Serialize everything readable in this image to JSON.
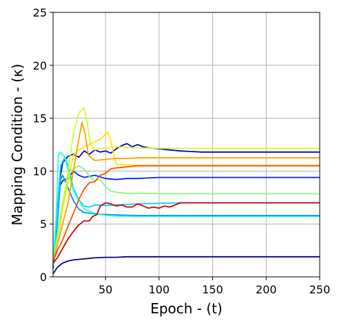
{
  "chart_data": {
    "type": "line",
    "xlabel": "Epoch - (t)",
    "ylabel": "Mapping Condition - (κ)",
    "xlim": [
      1,
      250
    ],
    "ylim": [
      0,
      25
    ],
    "x_ticks": [
      50,
      100,
      150,
      200,
      250
    ],
    "y_ticks": [
      0,
      5,
      10,
      15,
      20,
      25
    ],
    "grid": true,
    "legend": "none",
    "series": [
      {
        "color": "#00008f",
        "values": [
          [
            1,
            0.3
          ],
          [
            5,
            0.9
          ],
          [
            10,
            1.3
          ],
          [
            15,
            1.5
          ],
          [
            20,
            1.6
          ],
          [
            30,
            1.7
          ],
          [
            40,
            1.8
          ],
          [
            50,
            1.85
          ],
          [
            60,
            1.85
          ],
          [
            70,
            1.9
          ],
          [
            80,
            1.9
          ],
          [
            100,
            1.9
          ],
          [
            150,
            1.9
          ],
          [
            250,
            1.9
          ]
        ]
      },
      {
        "color": "#0000cd",
        "values": [
          [
            1,
            0.8
          ],
          [
            4,
            4.5
          ],
          [
            7,
            9
          ],
          [
            10,
            10.8
          ],
          [
            15,
            11.4
          ],
          [
            20,
            11.6
          ],
          [
            25,
            11.3
          ],
          [
            30,
            11.9
          ],
          [
            35,
            11.6
          ],
          [
            40,
            12.0
          ],
          [
            45,
            11.8
          ],
          [
            50,
            11.9
          ],
          [
            55,
            11.7
          ],
          [
            60,
            12.1
          ],
          [
            65,
            12.4
          ],
          [
            70,
            12.6
          ],
          [
            75,
            12.3
          ],
          [
            80,
            12.5
          ],
          [
            85,
            12.3
          ],
          [
            90,
            12.2
          ],
          [
            100,
            12.1
          ],
          [
            110,
            12.0
          ],
          [
            120,
            11.9
          ],
          [
            130,
            11.85
          ],
          [
            140,
            11.8
          ],
          [
            150,
            11.8
          ],
          [
            250,
            11.8
          ]
        ]
      },
      {
        "color": "#0022ff",
        "values": [
          [
            1,
            0.9
          ],
          [
            4,
            5
          ],
          [
            7,
            8.5
          ],
          [
            10,
            9.1
          ],
          [
            15,
            9.3
          ],
          [
            20,
            10.0
          ],
          [
            25,
            9.6
          ],
          [
            30,
            9.4
          ],
          [
            40,
            9.6
          ],
          [
            50,
            9.3
          ],
          [
            60,
            9.2
          ],
          [
            70,
            9.3
          ],
          [
            80,
            9.3
          ],
          [
            90,
            9.35
          ],
          [
            100,
            9.4
          ],
          [
            150,
            9.4
          ],
          [
            250,
            9.4
          ]
        ]
      },
      {
        "color": "#0090ff",
        "values": [
          [
            1,
            0.9
          ],
          [
            5,
            5
          ],
          [
            8,
            9.2
          ],
          [
            10,
            9.6
          ],
          [
            15,
            8.4
          ],
          [
            20,
            7.2
          ],
          [
            25,
            6.4
          ],
          [
            30,
            6.1
          ],
          [
            40,
            5.95
          ],
          [
            50,
            5.9
          ],
          [
            60,
            5.85
          ],
          [
            80,
            5.8
          ],
          [
            100,
            5.8
          ],
          [
            250,
            5.8
          ]
        ]
      },
      {
        "color": "#00d4ff",
        "values": [
          [
            1,
            1.0
          ],
          [
            5,
            6
          ],
          [
            8,
            10.5
          ],
          [
            12,
            11.3
          ],
          [
            15,
            10.5
          ],
          [
            20,
            8.4
          ],
          [
            25,
            7.3
          ],
          [
            30,
            6.7
          ],
          [
            35,
            6.6
          ],
          [
            40,
            6.8
          ],
          [
            50,
            6.75
          ],
          [
            60,
            6.8
          ],
          [
            70,
            6.85
          ],
          [
            80,
            6.9
          ],
          [
            100,
            6.95
          ],
          [
            120,
            7.0
          ],
          [
            150,
            7.0
          ],
          [
            250,
            7.0
          ]
        ]
      },
      {
        "color": "#29ffce",
        "values": [
          [
            1,
            1.0
          ],
          [
            4,
            6
          ],
          [
            6,
            11.5
          ],
          [
            8,
            11.8
          ],
          [
            12,
            11.3
          ],
          [
            16,
            9.6
          ],
          [
            20,
            8.2
          ],
          [
            25,
            7.2
          ],
          [
            30,
            6.4
          ],
          [
            40,
            6.0
          ],
          [
            50,
            5.8
          ],
          [
            60,
            5.75
          ],
          [
            80,
            5.7
          ],
          [
            100,
            5.7
          ],
          [
            250,
            5.7
          ]
        ]
      },
      {
        "color": "#7dff7a",
        "values": [
          [
            1,
            1.1
          ],
          [
            5,
            4
          ],
          [
            10,
            7
          ],
          [
            15,
            9.8
          ],
          [
            20,
            10.2
          ],
          [
            25,
            10.5
          ],
          [
            30,
            10.2
          ],
          [
            35,
            9.5
          ],
          [
            40,
            9.1
          ],
          [
            45,
            9.2
          ],
          [
            50,
            8.5
          ],
          [
            55,
            8.1
          ],
          [
            60,
            8.0
          ],
          [
            70,
            7.9
          ],
          [
            80,
            7.9
          ],
          [
            100,
            7.85
          ],
          [
            150,
            7.85
          ],
          [
            250,
            7.85
          ]
        ]
      },
      {
        "color": "#cdff29",
        "values": [
          [
            1,
            1.2
          ],
          [
            5,
            3
          ],
          [
            10,
            6.5
          ],
          [
            15,
            10
          ],
          [
            20,
            13.5
          ],
          [
            25,
            15.5
          ],
          [
            30,
            16.0
          ],
          [
            33,
            14.5
          ],
          [
            36,
            12.5
          ],
          [
            40,
            12.0
          ],
          [
            45,
            12.1
          ],
          [
            50,
            12.2
          ],
          [
            60,
            12.3
          ],
          [
            80,
            12.2
          ],
          [
            100,
            12.15
          ],
          [
            150,
            12.15
          ],
          [
            250,
            12.15
          ]
        ]
      },
      {
        "color": "#ffe600",
        "values": [
          [
            1,
            1.2
          ],
          [
            5,
            3
          ],
          [
            10,
            6.5
          ],
          [
            15,
            9
          ],
          [
            20,
            11.5
          ],
          [
            25,
            12.0
          ],
          [
            30,
            12.3
          ],
          [
            35,
            12.5
          ],
          [
            40,
            12.8
          ],
          [
            45,
            13.0
          ],
          [
            50,
            13.5
          ],
          [
            52,
            13.7
          ],
          [
            55,
            12.8
          ],
          [
            58,
            11.4
          ],
          [
            60,
            10.6
          ],
          [
            65,
            10.6
          ],
          [
            80,
            10.55
          ],
          [
            100,
            10.55
          ],
          [
            250,
            10.55
          ]
        ]
      },
      {
        "color": "#ffa000",
        "values": [
          [
            1,
            1.3
          ],
          [
            5,
            3
          ],
          [
            10,
            5
          ],
          [
            15,
            7
          ],
          [
            20,
            10
          ],
          [
            25,
            13
          ],
          [
            28,
            14.6
          ],
          [
            31,
            13.5
          ],
          [
            34,
            11.5
          ],
          [
            40,
            11.0
          ],
          [
            50,
            11.1
          ],
          [
            60,
            11.2
          ],
          [
            70,
            11.2
          ],
          [
            80,
            11.25
          ],
          [
            100,
            11.25
          ],
          [
            250,
            11.25
          ]
        ]
      },
      {
        "color": "#ff4e00",
        "values": [
          [
            1,
            1.4
          ],
          [
            5,
            2.5
          ],
          [
            10,
            3.5
          ],
          [
            15,
            4.8
          ],
          [
            20,
            6.0
          ],
          [
            25,
            7.3
          ],
          [
            30,
            8.3
          ],
          [
            35,
            8.9
          ],
          [
            40,
            9.0
          ],
          [
            45,
            9.6
          ],
          [
            50,
            9.8
          ],
          [
            55,
            10.2
          ],
          [
            60,
            10.3
          ],
          [
            70,
            10.4
          ],
          [
            80,
            10.5
          ],
          [
            100,
            10.5
          ],
          [
            250,
            10.5
          ]
        ]
      },
      {
        "color": "#cd0000",
        "values": [
          [
            1,
            1.3
          ],
          [
            5,
            1.8
          ],
          [
            10,
            2.7
          ],
          [
            15,
            3.6
          ],
          [
            20,
            4.3
          ],
          [
            25,
            4.9
          ],
          [
            30,
            5.3
          ],
          [
            35,
            5.3
          ],
          [
            38,
            5.7
          ],
          [
            42,
            5.9
          ],
          [
            45,
            6.7
          ],
          [
            50,
            7.0
          ],
          [
            55,
            6.9
          ],
          [
            60,
            6.7
          ],
          [
            65,
            6.8
          ],
          [
            70,
            6.6
          ],
          [
            75,
            6.6
          ],
          [
            80,
            6.9
          ],
          [
            85,
            6.7
          ],
          [
            90,
            6.5
          ],
          [
            95,
            6.6
          ],
          [
            100,
            6.5
          ],
          [
            105,
            6.7
          ],
          [
            110,
            6.6
          ],
          [
            115,
            6.8
          ],
          [
            120,
            7.0
          ],
          [
            130,
            7.0
          ],
          [
            150,
            7.0
          ],
          [
            250,
            7.0
          ]
        ]
      }
    ]
  }
}
